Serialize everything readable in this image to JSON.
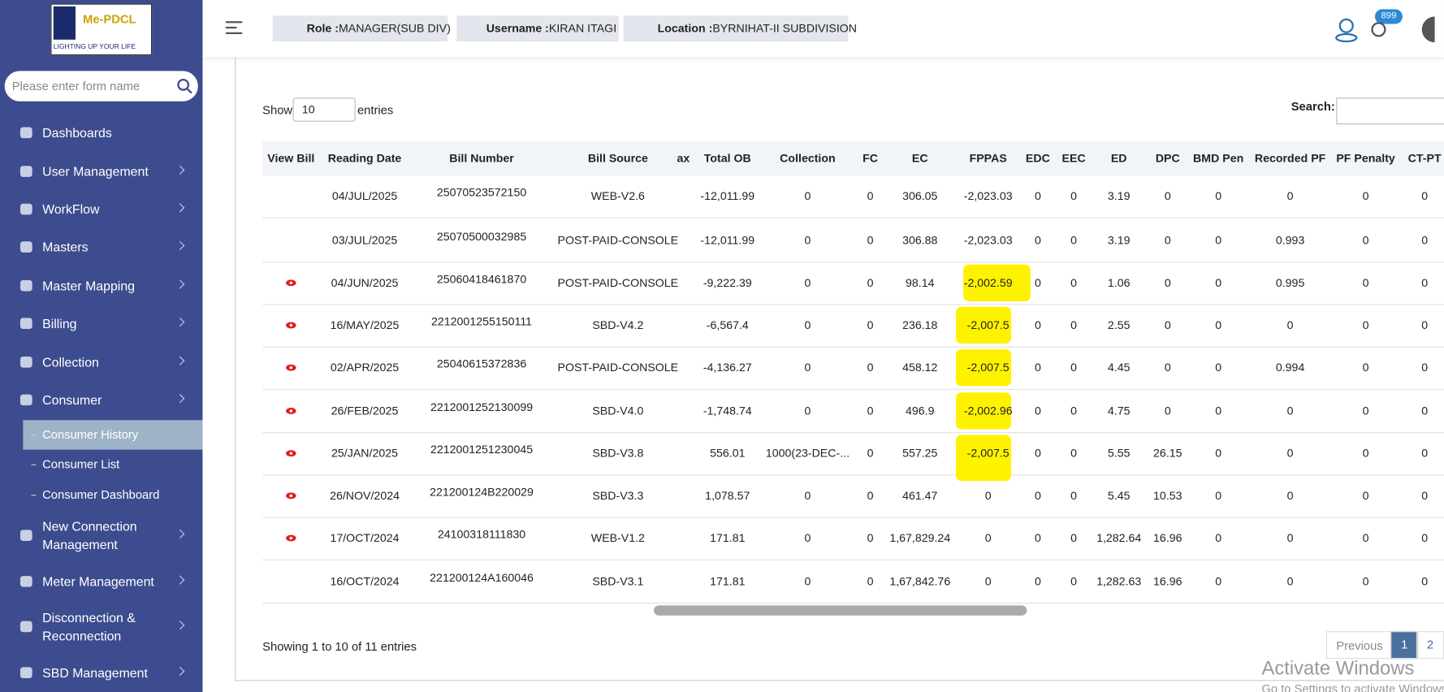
{
  "logo": {
    "brand": "Me-PDCL",
    "tagline": "LIGHTING UP YOUR LIFE"
  },
  "sidebar": {
    "search_placeholder": "Please enter form name",
    "items": [
      {
        "label": "Dashboards"
      },
      {
        "label": "User Management"
      },
      {
        "label": "WorkFlow"
      },
      {
        "label": "Masters"
      },
      {
        "label": "Master Mapping"
      },
      {
        "label": "Billing"
      },
      {
        "label": "Collection"
      },
      {
        "label": "Consumer"
      },
      {
        "label": "Consumer History"
      },
      {
        "label": "Consumer List"
      },
      {
        "label": "Consumer Dashboard"
      },
      {
        "label": "New Connection Management"
      },
      {
        "label": "Meter Management"
      },
      {
        "label": "Disconnection & Reconnection"
      },
      {
        "label": "SBD Management"
      }
    ]
  },
  "header": {
    "role_label": "Role :",
    "role": "MANAGER(SUB DIV)",
    "username_label": "Username :",
    "username": "KIRAN ITAGI",
    "location_label": "Location :",
    "location": "BYRNIHAT-II SUBDIVISION",
    "badge": "899"
  },
  "controls": {
    "show": "Show",
    "page_size": "10",
    "entries": "entries",
    "search": "Search:"
  },
  "table": {
    "columns": [
      "View Bill",
      "Reading Date",
      "Bill Number",
      "Bill Source",
      "ax",
      "Total OB",
      "Collection",
      "FC",
      "EC",
      "FPPAS",
      "EDC",
      "EEC",
      "ED",
      "DPC",
      "BMD Pen",
      "Recorded PF",
      "PF Penalty",
      "CT-PT"
    ],
    "view_bill": [
      false,
      false,
      true,
      true,
      true,
      true,
      true,
      true,
      true,
      false
    ],
    "rows": [
      [
        "04/JUL/2025",
        "25070523572150",
        "WEB-V2.6",
        "-12,011.99",
        "0",
        "0",
        "306.05",
        "-2,023.03",
        "0",
        "0",
        "3.19",
        "0",
        "0",
        "0",
        "0",
        "0"
      ],
      [
        "03/JUL/2025",
        "25070500032985",
        "POST-PAID-CONSOLE",
        "-12,011.99",
        "0",
        "0",
        "306.88",
        "-2,023.03",
        "0",
        "0",
        "3.19",
        "0",
        "0",
        "0.993",
        "0",
        "0"
      ],
      [
        "04/JUN/2025",
        "25060418461870",
        "POST-PAID-CONSOLE",
        "-9,222.39",
        "0",
        "0",
        "98.14",
        "-2,002.59",
        "0",
        "0",
        "1.06",
        "0",
        "0",
        "0.995",
        "0",
        "0"
      ],
      [
        "16/MAY/2025",
        "2212001255150111",
        "SBD-V4.2",
        "-6,567.4",
        "0",
        "0",
        "236.18",
        "-2,007.5",
        "0",
        "0",
        "2.55",
        "0",
        "0",
        "0",
        "0",
        "0"
      ],
      [
        "02/APR/2025",
        "25040615372836",
        "POST-PAID-CONSOLE",
        "-4,136.27",
        "0",
        "0",
        "458.12",
        "-2,007.5",
        "0",
        "0",
        "4.45",
        "0",
        "0",
        "0.994",
        "0",
        "0"
      ],
      [
        "26/FEB/2025",
        "2212001252130099",
        "SBD-V4.0",
        "-1,748.74",
        "0",
        "0",
        "496.9",
        "-2,002.96",
        "0",
        "0",
        "4.75",
        "0",
        "0",
        "0",
        "0",
        "0"
      ],
      [
        "25/JAN/2025",
        "2212001251230045",
        "SBD-V3.8",
        "556.01",
        "1000(23-DEC-...",
        "0",
        "557.25",
        "-2,007.5",
        "0",
        "0",
        "5.55",
        "26.15",
        "0",
        "0",
        "0",
        "0"
      ],
      [
        "26/NOV/2024",
        "221200124B220029",
        "SBD-V3.3",
        "1,078.57",
        "0",
        "0",
        "461.47",
        "0",
        "0",
        "0",
        "5.45",
        "10.53",
        "0",
        "0",
        "0",
        "0"
      ],
      [
        "17/OCT/2024",
        "24100318111830",
        "WEB-V1.2",
        "171.81",
        "0",
        "0",
        "1,67,829.24",
        "0",
        "0",
        "0",
        "1,282.64",
        "16.96",
        "0",
        "0",
        "0",
        "0"
      ],
      [
        "16/OCT/2024",
        "221200124A160046",
        "SBD-V3.1",
        "171.81",
        "0",
        "0",
        "1,67,842.76",
        "0",
        "0",
        "0",
        "1,282.63",
        "16.96",
        "0",
        "0",
        "0",
        "0"
      ]
    ]
  },
  "footer": {
    "info": "Showing 1 to 10 of 11 entries",
    "previous": "Previous",
    "pages": [
      "1",
      "2"
    ]
  },
  "watermark": {
    "title": "Activate Windows",
    "subtitle": "Go to Settings to activate Windows."
  }
}
